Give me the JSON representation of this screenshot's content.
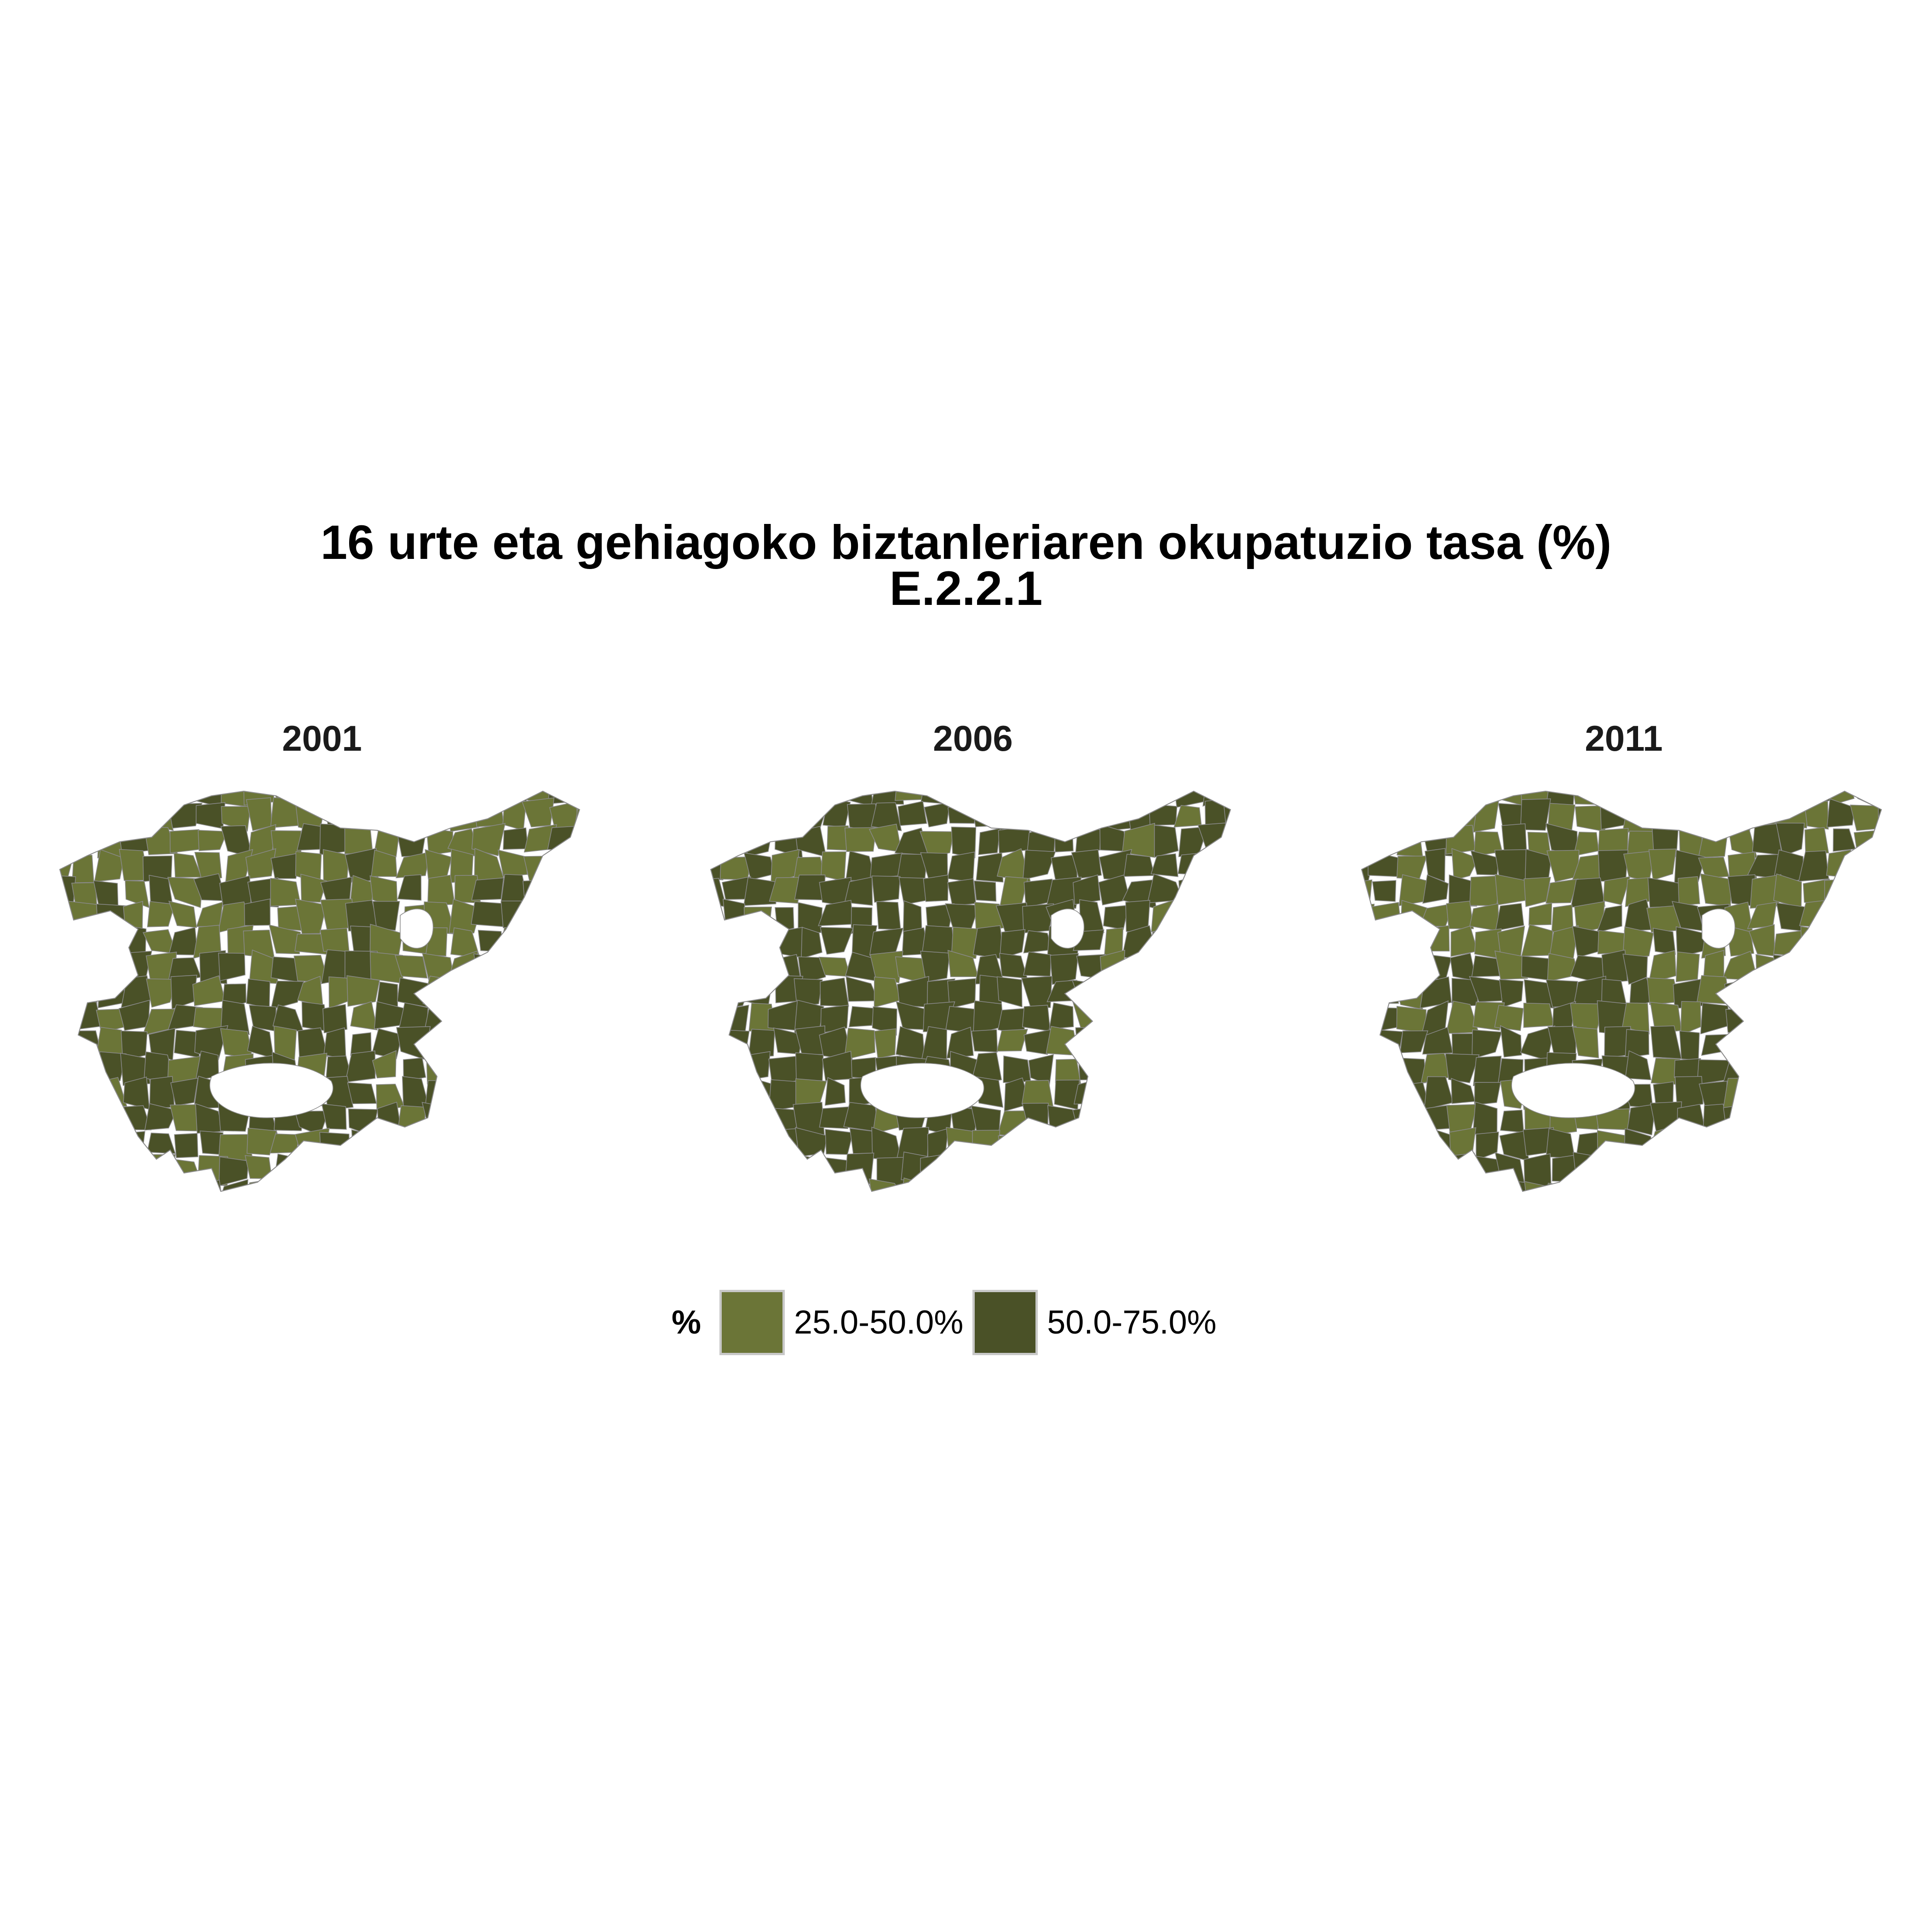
{
  "title": {
    "line1": "16 urte eta gehiagoko biztanleriaren okupatuzio tasa (%)",
    "line2": "E.2.2.1"
  },
  "legend": {
    "title": "%",
    "items": [
      {
        "label": "25.0-50.0%",
        "color": "#6b7537"
      },
      {
        "label": "50.0-75.0%",
        "color": "#4a5127"
      }
    ]
  },
  "panels": [
    {
      "year": "2001",
      "predominant_class": "mixed"
    },
    {
      "year": "2006",
      "predominant_class": "50.0-75.0%"
    },
    {
      "year": "2011",
      "predominant_class": "mixed"
    }
  ],
  "colors": {
    "light": "#6b7537",
    "dark": "#4a5127",
    "border": "#8a8a8a"
  }
}
